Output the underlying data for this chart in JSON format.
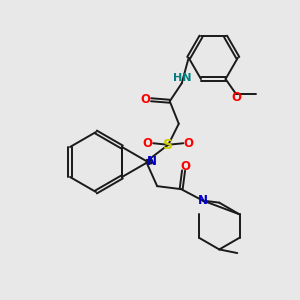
{
  "background_color": "#e8e8e8",
  "atom_colors": {
    "C": "#1a1a1a",
    "N": "#0000cc",
    "O": "#ff0000",
    "S": "#cccc00",
    "H": "#008080",
    "NH": "#008080"
  },
  "figsize": [
    3.0,
    3.0
  ],
  "dpi": 100,
  "lw": 1.4,
  "fs": 8.5
}
